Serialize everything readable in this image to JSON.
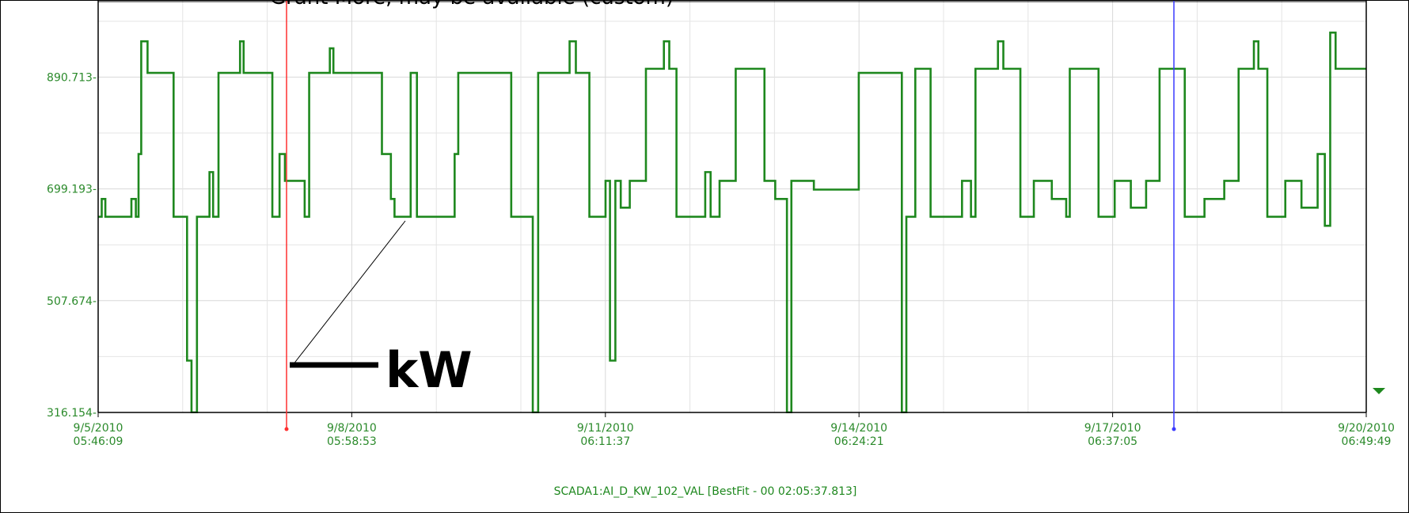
{
  "chart_data": {
    "type": "line",
    "subtitle": "Grant More, may be available (custom)",
    "annotation": "kW",
    "line_style": "step",
    "grid": true,
    "series": [
      {
        "name": "SCADA1:AI_D_KW_102_VAL [BestFit - 00 02:05:37.813]",
        "color": "#1e881e",
        "x": [
          "2010-09-05T05:46",
          "2010-09-05T06:47",
          "2010-09-05T07:49",
          "2010-09-05T15:14",
          "2010-09-05T16:30",
          "2010-09-05T17:16",
          "2010-09-05T18:02",
          "2010-09-05T19:50",
          "2010-09-06T03:15",
          "2010-09-06T07:05",
          "2010-09-06T08:21",
          "2010-09-06T09:54",
          "2010-09-06T13:28",
          "2010-09-06T14:30",
          "2010-09-06T16:02",
          "2010-09-06T22:10",
          "2010-09-06T23:11",
          "2010-09-07T07:22",
          "2010-09-07T09:25",
          "2010-09-07T10:57",
          "2010-09-07T16:34",
          "2010-09-07T17:51",
          "2010-09-07T23:44",
          "2010-09-08T00:45",
          "2010-09-08T14:34",
          "2010-09-08T17:07",
          "2010-09-08T18:09",
          "2010-09-08T22:45",
          "2010-09-09T00:32",
          "2010-09-09T11:16",
          "2010-09-09T12:18",
          "2010-09-10T03:23",
          "2010-09-10T09:31",
          "2010-09-10T11:03",
          "2010-09-10T20:00",
          "2010-09-10T21:47",
          "2010-09-11T01:38",
          "2010-09-11T06:14",
          "2010-09-11T07:30",
          "2010-09-11T09:02",
          "2010-09-11T10:34",
          "2010-09-11T13:08",
          "2010-09-11T17:44",
          "2010-09-11T22:51",
          "2010-09-12T00:23",
          "2010-09-12T02:26",
          "2010-09-12T10:37",
          "2010-09-12T12:09",
          "2010-09-12T14:42",
          "2010-09-12T19:18",
          "2010-09-13T03:29",
          "2010-09-13T06:33",
          "2010-09-13T09:53",
          "2010-09-13T11:09",
          "2010-09-13T17:33",
          "2010-09-14T06:20",
          "2010-09-14T18:36",
          "2010-09-14T19:53",
          "2010-09-14T22:26",
          "2010-09-15T02:47",
          "2010-09-15T11:44",
          "2010-09-15T14:17",
          "2010-09-15T15:34",
          "2010-09-15T21:58",
          "2010-09-15T23:30",
          "2010-09-16T04:21",
          "2010-09-16T08:11",
          "2010-09-16T13:18",
          "2010-09-16T17:24",
          "2010-09-16T18:25",
          "2010-09-17T02:36",
          "2010-09-17T07:12",
          "2010-09-17T11:48",
          "2010-09-17T16:09",
          "2010-09-17T19:59",
          "2010-09-18T03:09",
          "2010-09-18T08:46",
          "2010-09-18T14:24",
          "2010-09-18T18:29",
          "2010-09-18T22:50",
          "2010-09-19T00:07",
          "2010-09-19T02:40",
          "2010-09-19T07:47",
          "2010-09-19T12:23",
          "2010-09-19T16:59",
          "2010-09-19T19:02",
          "2010-09-19T20:34",
          "2010-09-19T22:06",
          "2010-09-20T06:49"
        ],
        "values": [
          651.5,
          682,
          651.5,
          682,
          651.5,
          759,
          952,
          898,
          651.5,
          405,
          316.2,
          651.5,
          728,
          651.5,
          898,
          952,
          898,
          651.5,
          759,
          713,
          651.5,
          898,
          940,
          898,
          759,
          682,
          651.5,
          898,
          651.5,
          759,
          898,
          651.5,
          316.2,
          898,
          952,
          898,
          651.5,
          713,
          405,
          713,
          667,
          713,
          905,
          952,
          905,
          651.5,
          728,
          651.5,
          713,
          905,
          713,
          682,
          316.2,
          713,
          698,
          898,
          316.2,
          651.5,
          905,
          651.5,
          713,
          651.5,
          905,
          952,
          905,
          651.5,
          713,
          682,
          651.5,
          905,
          651.5,
          713,
          667,
          713,
          905,
          651.5,
          682,
          713,
          905,
          952,
          905,
          651.5,
          713,
          667,
          759,
          636,
          967,
          905,
          905
        ]
      }
    ],
    "xlim": [
      "2010-09-05T05:46:09",
      "2010-09-20T06:49:49"
    ],
    "xticks": [
      {
        "value": "2010-09-05T05:46:09",
        "label": "9/5/2010 05:46:09"
      },
      {
        "value": "2010-09-08T05:58:53",
        "label": "9/8/2010 05:58:53"
      },
      {
        "value": "2010-09-11T06:11:37",
        "label": "9/11/2010 06:11:37"
      },
      {
        "value": "2010-09-14T06:24:21",
        "label": "9/14/2010 06:24:21"
      },
      {
        "value": "2010-09-17T06:37:05",
        "label": "9/17/2010 06:37:05"
      },
      {
        "value": "2010-09-20T06:49:49",
        "label": "9/20/2010 06:49:49"
      }
    ],
    "ylim": [
      316.154,
      1021.5
    ],
    "yticks": [
      {
        "value": 316.154,
        "label": "316.154-"
      },
      {
        "value": 507.674,
        "label": "507.674-"
      },
      {
        "value": 699.193,
        "label": "699.193-"
      },
      {
        "value": 890.713,
        "label": "890.713-"
      }
    ]
  }
}
